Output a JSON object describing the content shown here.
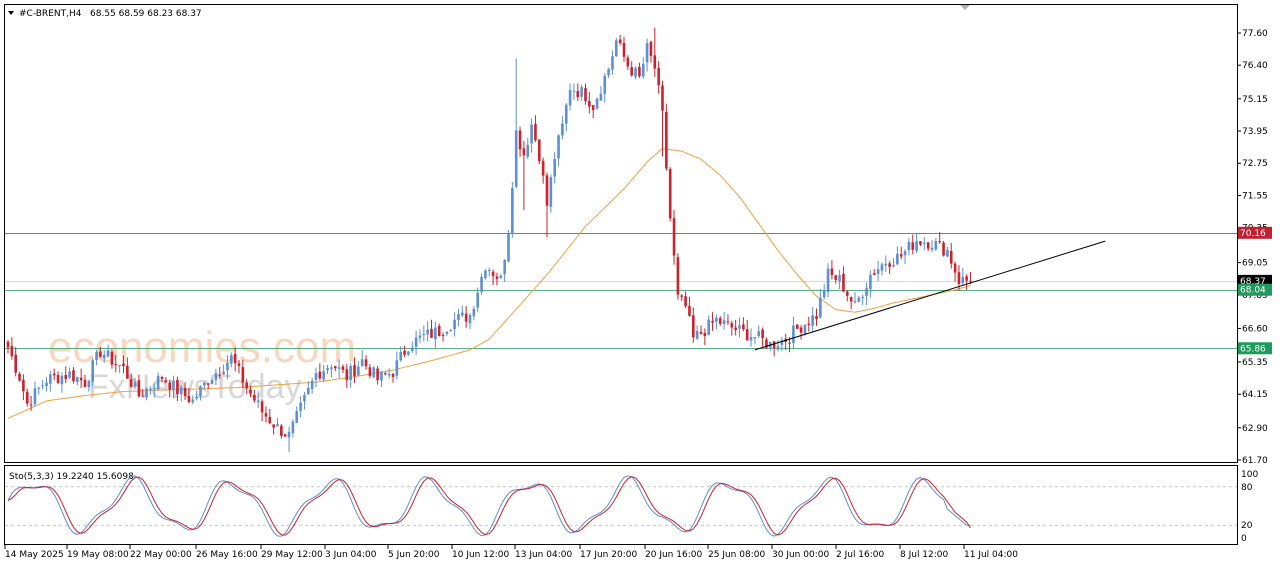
{
  "header": {
    "symbol": "#C-BRENT,H4",
    "ohlc": "68.55 68.59 68.23 68.37"
  },
  "watermark": {
    "brand_top": "economies.com",
    "brand_bottom": "FxNewsToday"
  },
  "colors": {
    "bull": "#5b8fd6",
    "bear": "#d0202a",
    "ma": "#f0a040",
    "resistance": "#c02030",
    "support": "#1e9a5a",
    "trendline": "#000000",
    "stoch_main": "#5b8fd6",
    "stoch_signal": "#d0202a"
  },
  "chart_data": {
    "type": "candlestick",
    "symbol": "#C-BRENT",
    "timeframe": "H4",
    "ylim": [
      61.7,
      78.3
    ],
    "y_ticks": [
      "77.60",
      "76.40",
      "75.15",
      "73.95",
      "72.75",
      "71.55",
      "70.35",
      "69.05",
      "67.85",
      "66.60",
      "65.35",
      "64.15",
      "62.90",
      "61.70"
    ],
    "x_ticks": [
      "14 May 2025",
      "19 May 08:00",
      "22 May 00:00",
      "26 May 16:00",
      "29 May 12:00",
      "3 Jun 04:00",
      "5 Jun 20:00",
      "10 Jun 12:00",
      "13 Jun 04:00",
      "17 Jun 20:00",
      "20 Jun 16:00",
      "25 Jun 08:00",
      "30 Jun 00:00",
      "2 Jul 16:00",
      "8 Jul 12:00",
      "11 Jul 04:00"
    ],
    "levels": [
      {
        "value": 70.16,
        "label": "70.16",
        "kind": "resistance"
      },
      {
        "value": 68.37,
        "label": "68.37",
        "kind": "current"
      },
      {
        "value": 68.04,
        "label": "68.04",
        "kind": "support"
      },
      {
        "value": 65.86,
        "label": "65.86",
        "kind": "support"
      }
    ],
    "trendline": {
      "from": {
        "index": 194,
        "value": 65.8
      },
      "to": {
        "index": 285,
        "value": 69.85
      }
    },
    "anchors": [
      [
        0,
        65.9
      ],
      [
        3,
        64.8
      ],
      [
        5,
        63.8
      ],
      [
        10,
        64.7
      ],
      [
        16,
        64.9
      ],
      [
        20,
        64.6
      ],
      [
        24,
        65.75
      ],
      [
        30,
        65.1
      ],
      [
        34,
        64.1
      ],
      [
        40,
        64.8
      ],
      [
        44,
        64.3
      ],
      [
        48,
        63.9
      ],
      [
        52,
        64.7
      ],
      [
        58,
        65.5
      ],
      [
        62,
        64.4
      ],
      [
        66,
        63.5
      ],
      [
        70,
        62.9
      ],
      [
        73,
        62.6
      ],
      [
        76,
        63.6
      ],
      [
        80,
        64.9
      ],
      [
        84,
        65.3
      ],
      [
        88,
        64.8
      ],
      [
        92,
        65.4
      ],
      [
        96,
        64.7
      ],
      [
        100,
        65.0
      ],
      [
        104,
        66.0
      ],
      [
        108,
        66.3
      ],
      [
        112,
        66.5
      ],
      [
        116,
        66.9
      ],
      [
        120,
        67.1
      ],
      [
        124,
        69.0
      ],
      [
        128,
        68.4
      ],
      [
        130,
        70.3
      ],
      [
        132,
        73.9
      ],
      [
        134,
        73.1
      ],
      [
        136,
        74.2
      ],
      [
        138,
        73.1
      ],
      [
        140,
        71.2
      ],
      [
        142,
        73.0
      ],
      [
        144,
        74.1
      ],
      [
        146,
        75.6
      ],
      [
        150,
        75.3
      ],
      [
        152,
        74.9
      ],
      [
        156,
        76.3
      ],
      [
        158,
        77.3
      ],
      [
        161,
        76.4
      ],
      [
        164,
        75.9
      ],
      [
        166,
        77.0
      ],
      [
        168,
        76.3
      ],
      [
        170,
        74.5
      ],
      [
        172,
        70.7
      ],
      [
        174,
        67.7
      ],
      [
        176,
        67.4
      ],
      [
        178,
        66.2
      ],
      [
        184,
        66.9
      ],
      [
        190,
        66.5
      ],
      [
        194,
        66.3
      ],
      [
        198,
        66.0
      ],
      [
        202,
        66.2
      ],
      [
        206,
        66.7
      ],
      [
        210,
        67.1
      ],
      [
        213,
        68.6
      ],
      [
        216,
        68.4
      ],
      [
        220,
        67.4
      ],
      [
        224,
        68.6
      ],
      [
        228,
        69.1
      ],
      [
        232,
        69.3
      ],
      [
        236,
        69.9
      ],
      [
        240,
        69.8
      ],
      [
        244,
        69.5
      ],
      [
        247,
        68.4
      ],
      [
        250,
        68.37
      ]
    ],
    "moving_average": {
      "kind": "smoothed",
      "points": [
        [
          0,
          63.25
        ],
        [
          10,
          63.9
        ],
        [
          20,
          64.1
        ],
        [
          30,
          64.25
        ],
        [
          40,
          64.3
        ],
        [
          50,
          64.35
        ],
        [
          60,
          64.4
        ],
        [
          70,
          64.5
        ],
        [
          80,
          64.6
        ],
        [
          90,
          64.8
        ],
        [
          100,
          65.05
        ],
        [
          110,
          65.4
        ],
        [
          120,
          65.8
        ],
        [
          125,
          66.2
        ],
        [
          130,
          67.0
        ],
        [
          135,
          67.8
        ],
        [
          140,
          68.6
        ],
        [
          150,
          70.4
        ],
        [
          160,
          71.8
        ],
        [
          166,
          72.8
        ],
        [
          170,
          73.3
        ],
        [
          175,
          73.2
        ],
        [
          180,
          72.9
        ],
        [
          185,
          72.3
        ],
        [
          190,
          71.5
        ],
        [
          195,
          70.5
        ],
        [
          200,
          69.5
        ],
        [
          205,
          68.6
        ],
        [
          210,
          67.8
        ],
        [
          215,
          67.3
        ],
        [
          220,
          67.2
        ],
        [
          225,
          67.35
        ],
        [
          230,
          67.55
        ],
        [
          235,
          67.7
        ],
        [
          240,
          67.85
        ],
        [
          245,
          68.0
        ],
        [
          250,
          68.2
        ]
      ]
    },
    "stochastic": {
      "label": "Sto(5,3,3) 19.2240 15.6098",
      "k": 19.224,
      "d": 15.6098,
      "params": [
        5,
        3,
        3
      ],
      "ylim": [
        0,
        100
      ],
      "levels": [
        80,
        20
      ],
      "y_ticks": [
        "100",
        "80",
        "20",
        "0"
      ]
    },
    "grid": false,
    "legend": "none"
  }
}
